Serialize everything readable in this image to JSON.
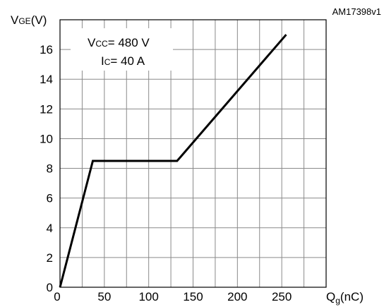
{
  "figure_id": "AM17398v1",
  "chart_data": {
    "type": "line",
    "title": "",
    "xlabel": {
      "main": "Q",
      "sub": "g",
      "unit": "(nC)"
    },
    "ylabel": {
      "main": "V",
      "sub": "GE",
      "unit": "(V)"
    },
    "xlim": [
      0,
      300
    ],
    "ylim": [
      0,
      18
    ],
    "x_ticks": [
      0,
      50,
      100,
      150,
      200,
      250
    ],
    "x_tick_labels": [
      "0",
      "50",
      "100",
      "150",
      "200",
      "250"
    ],
    "y_ticks": [
      0,
      2,
      4,
      6,
      8,
      10,
      12,
      14,
      16
    ],
    "y_tick_labels": [
      "0",
      "2",
      "4",
      "6",
      "8",
      "10",
      "12",
      "14",
      "16"
    ],
    "grid": true,
    "series": [
      {
        "x": [
          0,
          37,
          132,
          255
        ],
        "y": [
          0,
          8.5,
          8.5,
          17
        ]
      }
    ],
    "annotations": [
      {
        "main": "V",
        "sub": "CC",
        "rest": "= 480 V"
      },
      {
        "main": "I",
        "sub": "C",
        "rest": "= 40 A"
      }
    ]
  }
}
